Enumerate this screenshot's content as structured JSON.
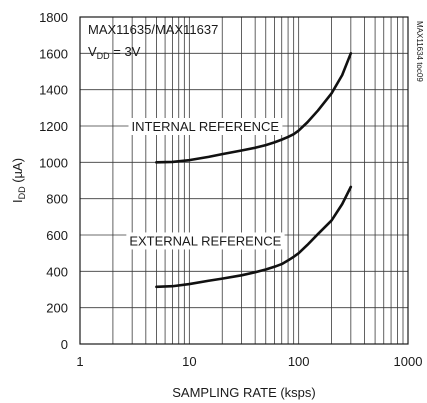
{
  "chart_data": {
    "type": "line",
    "x_scale": "log",
    "xlim": [
      1,
      1000
    ],
    "ylim": [
      0,
      1800
    ],
    "grid": true,
    "x_ticks": [
      "1",
      "10",
      "100",
      "1000"
    ],
    "y_ticks": [
      "0",
      "200",
      "400",
      "600",
      "800",
      "1000",
      "1200",
      "1400",
      "1600",
      "1800"
    ],
    "xlabel": "SAMPLING RATE (ksps)",
    "ylabel": {
      "main": "I",
      "sub": "DD",
      "unit": " (µA)"
    },
    "annotations": {
      "device": "MAX11635/MAX11637",
      "supply": {
        "main": "V",
        "sub": "DD",
        "rest": " = 3V"
      },
      "figure_id": "MAX11634 toc09"
    },
    "series": [
      {
        "name": "INTERNAL REFERENCE",
        "x": [
          5,
          7,
          10,
          15,
          20,
          30,
          40,
          50,
          60,
          70,
          80,
          90,
          100,
          120,
          150,
          200,
          250,
          300
        ],
        "y": [
          1000,
          1002,
          1012,
          1030,
          1045,
          1065,
          1080,
          1095,
          1110,
          1125,
          1140,
          1155,
          1175,
          1220,
          1285,
          1380,
          1480,
          1600
        ]
      },
      {
        "name": "EXTERNAL REFERENCE",
        "x": [
          5,
          7,
          10,
          15,
          20,
          30,
          40,
          50,
          60,
          70,
          80,
          90,
          100,
          120,
          150,
          200,
          250,
          300
        ],
        "y": [
          315,
          318,
          330,
          348,
          360,
          378,
          395,
          410,
          425,
          440,
          460,
          480,
          500,
          545,
          605,
          680,
          770,
          865
        ]
      }
    ]
  }
}
